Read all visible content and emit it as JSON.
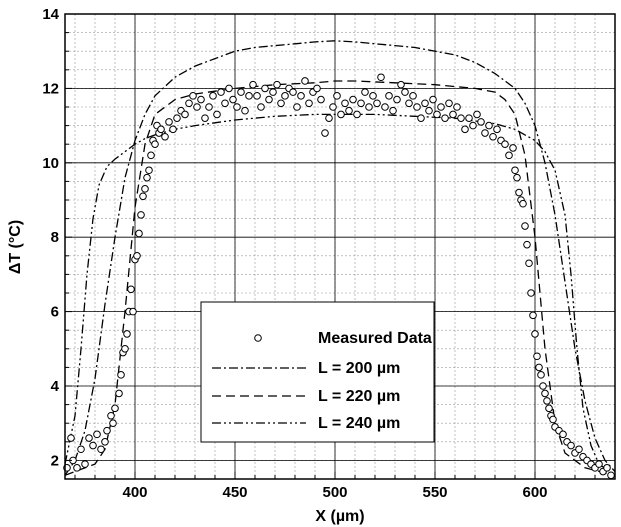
{
  "chart_data": {
    "type": "scatter",
    "title": "",
    "xlabel": "X (µm)",
    "ylabel": "ΔT (°C)",
    "xlim": [
      365,
      640
    ],
    "ylim": [
      1.5,
      14
    ],
    "xticks": [
      400,
      450,
      500,
      550,
      600
    ],
    "yticks": [
      2,
      4,
      6,
      8,
      10,
      12,
      14
    ],
    "grid": true,
    "legend_position": "bottom-center",
    "series": [
      {
        "name": "Measured Data",
        "style": "markers",
        "points": [
          [
            366,
            1.8
          ],
          [
            368,
            2.6
          ],
          [
            369,
            2.0
          ],
          [
            371,
            1.8
          ],
          [
            373,
            2.3
          ],
          [
            375,
            1.9
          ],
          [
            377,
            2.6
          ],
          [
            379,
            2.4
          ],
          [
            381,
            2.7
          ],
          [
            383,
            2.3
          ],
          [
            385,
            2.5
          ],
          [
            386,
            2.8
          ],
          [
            388,
            3.2
          ],
          [
            389,
            3.0
          ],
          [
            390,
            3.4
          ],
          [
            392,
            3.8
          ],
          [
            393,
            4.3
          ],
          [
            394,
            4.9
          ],
          [
            395,
            5.0
          ],
          [
            396,
            5.4
          ],
          [
            397,
            6.0
          ],
          [
            398,
            6.6
          ],
          [
            399,
            6.0
          ],
          [
            400,
            7.4
          ],
          [
            401,
            7.5
          ],
          [
            402,
            8.1
          ],
          [
            403,
            8.6
          ],
          [
            404,
            9.1
          ],
          [
            405,
            9.3
          ],
          [
            406,
            9.6
          ],
          [
            407,
            9.8
          ],
          [
            408,
            10.2
          ],
          [
            409,
            10.6
          ],
          [
            410,
            10.5
          ],
          [
            411,
            11.0
          ],
          [
            412,
            10.8
          ],
          [
            413,
            10.9
          ],
          [
            415,
            10.7
          ],
          [
            417,
            11.1
          ],
          [
            419,
            10.9
          ],
          [
            421,
            11.2
          ],
          [
            423,
            11.4
          ],
          [
            425,
            11.3
          ],
          [
            427,
            11.6
          ],
          [
            429,
            11.8
          ],
          [
            431,
            11.5
          ],
          [
            433,
            11.7
          ],
          [
            435,
            11.2
          ],
          [
            437,
            11.5
          ],
          [
            439,
            11.8
          ],
          [
            441,
            11.3
          ],
          [
            443,
            11.9
          ],
          [
            445,
            11.6
          ],
          [
            447,
            12.0
          ],
          [
            449,
            11.7
          ],
          [
            451,
            11.5
          ],
          [
            453,
            11.9
          ],
          [
            455,
            11.4
          ],
          [
            457,
            11.8
          ],
          [
            459,
            12.1
          ],
          [
            461,
            11.8
          ],
          [
            463,
            11.5
          ],
          [
            465,
            12.0
          ],
          [
            467,
            11.7
          ],
          [
            469,
            11.9
          ],
          [
            471,
            12.1
          ],
          [
            473,
            11.6
          ],
          [
            475,
            11.8
          ],
          [
            477,
            12.0
          ],
          [
            479,
            11.9
          ],
          [
            481,
            11.5
          ],
          [
            483,
            11.8
          ],
          [
            485,
            12.2
          ],
          [
            487,
            11.6
          ],
          [
            489,
            11.9
          ],
          [
            491,
            12.0
          ],
          [
            493,
            11.7
          ],
          [
            495,
            10.8
          ],
          [
            497,
            11.2
          ],
          [
            499,
            11.5
          ],
          [
            501,
            11.8
          ],
          [
            503,
            11.3
          ],
          [
            505,
            11.6
          ],
          [
            507,
            11.4
          ],
          [
            509,
            11.7
          ],
          [
            511,
            11.3
          ],
          [
            513,
            11.6
          ],
          [
            515,
            11.9
          ],
          [
            517,
            11.5
          ],
          [
            519,
            11.8
          ],
          [
            521,
            11.6
          ],
          [
            523,
            12.3
          ],
          [
            525,
            11.5
          ],
          [
            527,
            11.8
          ],
          [
            529,
            11.4
          ],
          [
            531,
            11.7
          ],
          [
            533,
            12.1
          ],
          [
            535,
            11.9
          ],
          [
            537,
            11.6
          ],
          [
            539,
            11.8
          ],
          [
            541,
            11.5
          ],
          [
            543,
            11.2
          ],
          [
            545,
            11.6
          ],
          [
            547,
            11.4
          ],
          [
            549,
            11.7
          ],
          [
            551,
            11.3
          ],
          [
            553,
            11.5
          ],
          [
            555,
            11.2
          ],
          [
            557,
            11.6
          ],
          [
            559,
            11.3
          ],
          [
            561,
            11.5
          ],
          [
            563,
            11.2
          ],
          [
            565,
            10.9
          ],
          [
            567,
            11.2
          ],
          [
            569,
            11.0
          ],
          [
            571,
            11.3
          ],
          [
            573,
            11.1
          ],
          [
            575,
            10.8
          ],
          [
            577,
            11.0
          ],
          [
            579,
            10.7
          ],
          [
            581,
            10.9
          ],
          [
            583,
            10.6
          ],
          [
            585,
            10.5
          ],
          [
            587,
            10.2
          ],
          [
            589,
            10.4
          ],
          [
            590,
            9.8
          ],
          [
            591,
            9.6
          ],
          [
            592,
            9.2
          ],
          [
            593,
            9.0
          ],
          [
            594,
            8.9
          ],
          [
            595,
            8.3
          ],
          [
            596,
            7.8
          ],
          [
            597,
            7.3
          ],
          [
            598,
            6.5
          ],
          [
            599,
            5.9
          ],
          [
            600,
            5.4
          ],
          [
            601,
            4.8
          ],
          [
            602,
            4.5
          ],
          [
            603,
            4.3
          ],
          [
            604,
            4.0
          ],
          [
            605,
            3.8
          ],
          [
            606,
            3.6
          ],
          [
            607,
            3.4
          ],
          [
            608,
            3.2
          ],
          [
            609,
            3.1
          ],
          [
            610,
            2.9
          ],
          [
            612,
            2.8
          ],
          [
            614,
            2.7
          ],
          [
            616,
            2.5
          ],
          [
            618,
            2.4
          ],
          [
            620,
            2.2
          ],
          [
            622,
            2.3
          ],
          [
            624,
            2.1
          ],
          [
            626,
            2.0
          ],
          [
            628,
            1.9
          ],
          [
            630,
            1.8
          ],
          [
            632,
            1.9
          ],
          [
            634,
            1.7
          ],
          [
            636,
            1.8
          ],
          [
            638,
            1.6
          ]
        ]
      },
      {
        "name": "L = 200 µm",
        "style": "dash-dot",
        "points": [
          [
            365,
            1.6
          ],
          [
            370,
            2.0
          ],
          [
            375,
            2.8
          ],
          [
            380,
            4.2
          ],
          [
            385,
            6.2
          ],
          [
            390,
            8.0
          ],
          [
            395,
            9.6
          ],
          [
            400,
            10.6
          ],
          [
            405,
            11.3
          ],
          [
            410,
            11.8
          ],
          [
            420,
            12.3
          ],
          [
            430,
            12.6
          ],
          [
            440,
            12.8
          ],
          [
            450,
            13.0
          ],
          [
            460,
            13.1
          ],
          [
            470,
            13.15
          ],
          [
            480,
            13.2
          ],
          [
            490,
            13.25
          ],
          [
            500,
            13.28
          ],
          [
            510,
            13.25
          ],
          [
            520,
            13.2
          ],
          [
            530,
            13.15
          ],
          [
            540,
            13.1
          ],
          [
            550,
            13.0
          ],
          [
            560,
            12.9
          ],
          [
            570,
            12.7
          ],
          [
            580,
            12.4
          ],
          [
            590,
            12.0
          ],
          [
            595,
            11.6
          ],
          [
            600,
            11.0
          ],
          [
            605,
            10.0
          ],
          [
            610,
            8.6
          ],
          [
            615,
            6.8
          ],
          [
            620,
            5.0
          ],
          [
            625,
            3.6
          ],
          [
            630,
            2.6
          ],
          [
            635,
            2.0
          ],
          [
            640,
            1.7
          ]
        ]
      },
      {
        "name": "L = 220 µm",
        "style": "dashed",
        "points": [
          [
            365,
            1.6
          ],
          [
            380,
            1.9
          ],
          [
            385,
            2.3
          ],
          [
            390,
            3.5
          ],
          [
            395,
            6.0
          ],
          [
            400,
            8.8
          ],
          [
            405,
            10.5
          ],
          [
            410,
            11.3
          ],
          [
            420,
            11.7
          ],
          [
            430,
            11.85
          ],
          [
            450,
            12.0
          ],
          [
            470,
            12.1
          ],
          [
            490,
            12.15
          ],
          [
            500,
            12.2
          ],
          [
            510,
            12.2
          ],
          [
            530,
            12.15
          ],
          [
            550,
            12.1
          ],
          [
            570,
            12.0
          ],
          [
            580,
            11.9
          ],
          [
            585,
            11.7
          ],
          [
            590,
            11.3
          ],
          [
            595,
            10.2
          ],
          [
            600,
            8.0
          ],
          [
            605,
            5.0
          ],
          [
            610,
            3.0
          ],
          [
            615,
            2.2
          ],
          [
            625,
            1.8
          ],
          [
            640,
            1.6
          ]
        ]
      },
      {
        "name": "L = 240 µm",
        "style": "dash-dot-dot",
        "points": [
          [
            365,
            1.9
          ],
          [
            370,
            3.2
          ],
          [
            373,
            5.0
          ],
          [
            376,
            7.0
          ],
          [
            379,
            8.5
          ],
          [
            382,
            9.4
          ],
          [
            386,
            9.9
          ],
          [
            390,
            10.1
          ],
          [
            395,
            10.3
          ],
          [
            400,
            10.5
          ],
          [
            405,
            10.65
          ],
          [
            410,
            10.75
          ],
          [
            420,
            10.9
          ],
          [
            430,
            11.0
          ],
          [
            450,
            11.15
          ],
          [
            470,
            11.25
          ],
          [
            490,
            11.3
          ],
          [
            500,
            11.3
          ],
          [
            520,
            11.3
          ],
          [
            540,
            11.25
          ],
          [
            560,
            11.2
          ],
          [
            580,
            11.05
          ],
          [
            590,
            10.9
          ],
          [
            600,
            10.6
          ],
          [
            605,
            10.3
          ],
          [
            610,
            9.8
          ],
          [
            615,
            8.6
          ],
          [
            618,
            7.0
          ],
          [
            621,
            5.0
          ],
          [
            624,
            3.4
          ],
          [
            628,
            2.4
          ],
          [
            632,
            1.9
          ],
          [
            640,
            1.6
          ]
        ]
      }
    ]
  }
}
